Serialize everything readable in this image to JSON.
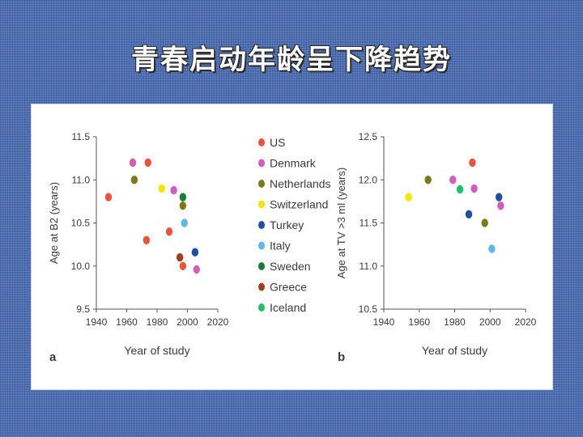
{
  "slide": {
    "title": "青春启动年龄呈下降趋势"
  },
  "legend": {
    "items": [
      {
        "name": "US",
        "color": "#e8553f"
      },
      {
        "name": "Denmark",
        "color": "#d45dbb"
      },
      {
        "name": "Netherlands",
        "color": "#7a7a1a"
      },
      {
        "name": "Switzerland",
        "color": "#f2e600"
      },
      {
        "name": "Turkey",
        "color": "#1f4fa0"
      },
      {
        "name": "Italy",
        "color": "#5cb8e6"
      },
      {
        "name": "Sweden",
        "color": "#1a7a3a"
      },
      {
        "name": "Greece",
        "color": "#a0401a"
      },
      {
        "name": "Iceland",
        "color": "#22c06a"
      }
    ]
  },
  "chart_data": [
    {
      "type": "scatter",
      "panel_label": "a",
      "xlabel": "Year of study",
      "ylabel": "Age at B2 (years)",
      "xlim": [
        1940,
        2020
      ],
      "ylim": [
        9.5,
        11.5
      ],
      "xticks": [
        "1940",
        "1960",
        "1980",
        "2000",
        "2020"
      ],
      "yticks": [
        "9.5",
        "10.0",
        "10.5",
        "11.0",
        "11.5"
      ],
      "points": [
        {
          "series": "US",
          "x": 1948,
          "y": 10.8
        },
        {
          "series": "US",
          "x": 1973,
          "y": 10.3
        },
        {
          "series": "US",
          "x": 1974,
          "y": 11.2
        },
        {
          "series": "US",
          "x": 1988,
          "y": 10.4
        },
        {
          "series": "US",
          "x": 1997,
          "y": 10.0
        },
        {
          "series": "Denmark",
          "x": 1964,
          "y": 11.2
        },
        {
          "series": "Denmark",
          "x": 1991,
          "y": 10.88
        },
        {
          "series": "Denmark",
          "x": 2006,
          "y": 9.96
        },
        {
          "series": "Netherlands",
          "x": 1965,
          "y": 11.0
        },
        {
          "series": "Netherlands",
          "x": 1997,
          "y": 10.7
        },
        {
          "series": "Switzerland",
          "x": 1983,
          "y": 10.9
        },
        {
          "series": "Turkey",
          "x": 2005,
          "y": 10.16
        },
        {
          "series": "Italy",
          "x": 1998,
          "y": 10.5
        },
        {
          "series": "Sweden",
          "x": 1997,
          "y": 10.8
        },
        {
          "series": "Greece",
          "x": 1995,
          "y": 10.1
        }
      ]
    },
    {
      "type": "scatter",
      "panel_label": "b",
      "xlabel": "Year of study",
      "ylabel": "Age at TV >3 ml (years)",
      "xlim": [
        1940,
        2020
      ],
      "ylim": [
        10.5,
        12.5
      ],
      "xticks": [
        "1940",
        "1960",
        "1980",
        "2000",
        "2020"
      ],
      "yticks": [
        "10.5",
        "11.0",
        "11.5",
        "12.0",
        "12.5"
      ],
      "points": [
        {
          "series": "Switzerland",
          "x": 1954,
          "y": 11.8
        },
        {
          "series": "Netherlands",
          "x": 1965,
          "y": 12.0
        },
        {
          "series": "Netherlands",
          "x": 1997,
          "y": 11.5
        },
        {
          "series": "Denmark",
          "x": 1979,
          "y": 12.0
        },
        {
          "series": "Denmark",
          "x": 1991,
          "y": 11.9
        },
        {
          "series": "Denmark",
          "x": 2006,
          "y": 11.7
        },
        {
          "series": "Iceland",
          "x": 1983,
          "y": 11.89
        },
        {
          "series": "Turkey",
          "x": 1988,
          "y": 11.6
        },
        {
          "series": "Turkey",
          "x": 2005,
          "y": 11.8
        },
        {
          "series": "US",
          "x": 1990,
          "y": 12.2
        },
        {
          "series": "Italy",
          "x": 2001,
          "y": 11.2
        }
      ]
    }
  ]
}
